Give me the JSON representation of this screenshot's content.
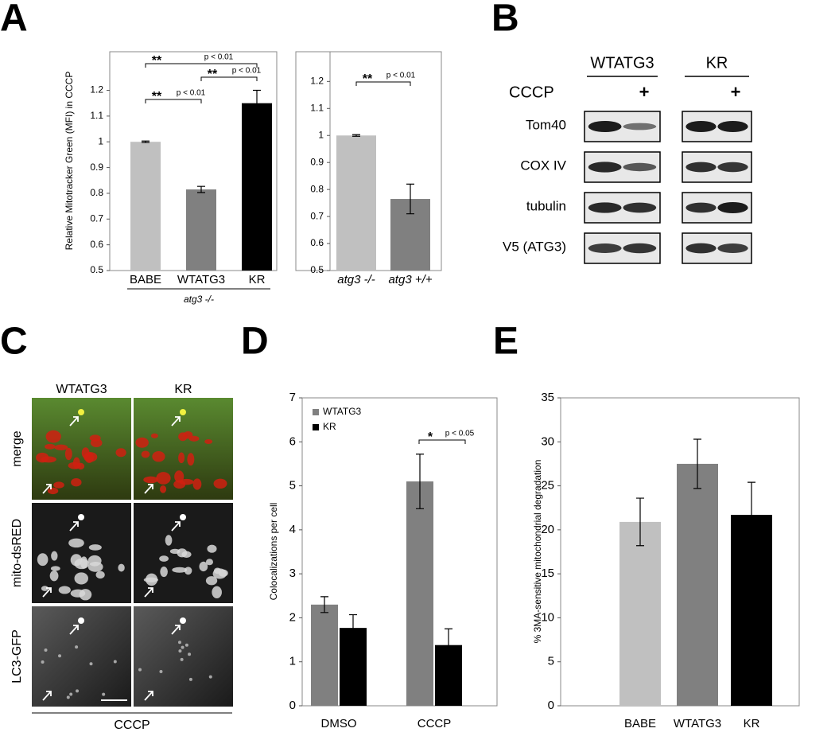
{
  "panel_labels": [
    "A",
    "B",
    "C",
    "D",
    "E"
  ],
  "chart_data": [
    {
      "type": "bar",
      "ylabel": "Relative Mitotracker Green (MFI) in CCCP",
      "categories": [
        "BABE",
        "WTATG3",
        "KR"
      ],
      "values": [
        1.0,
        0.815,
        1.15
      ],
      "errors": [
        0.003,
        0.012,
        0.05
      ],
      "colors": [
        "#c0c0c0",
        "#808080",
        "#000000"
      ],
      "group_label": "atg3 -/-",
      "ylim": [
        0.5,
        1.35
      ],
      "yticks": [
        0.5,
        0.6,
        0.7,
        0.8,
        0.9,
        1,
        1.1,
        1.2
      ],
      "annotations": [
        {
          "stars": "**",
          "text": "p < 0.01"
        },
        {
          "stars": "**",
          "text": "p < 0.01"
        },
        {
          "stars": "**",
          "text": "p < 0.01"
        }
      ]
    },
    {
      "type": "bar",
      "categories": [
        "atg3 -/-",
        "atg3 +/+"
      ],
      "values": [
        1.0,
        0.765
      ],
      "errors": [
        0.003,
        0.055
      ],
      "colors": [
        "#c0c0c0",
        "#808080"
      ],
      "ylim": [
        0.5,
        1.31
      ],
      "yticks": [
        0.5,
        0.6,
        0.7,
        0.8,
        0.9,
        1,
        1.1,
        1.2
      ],
      "annotations": [
        {
          "stars": "**",
          "text": "p < 0.01"
        }
      ]
    },
    {
      "type": "grouped_bar",
      "ylabel": "Colocalizations per cell",
      "categories": [
        "DMSO",
        "CCCP"
      ],
      "series": [
        {
          "name": "WTATG3",
          "color": "#808080",
          "values": [
            2.3,
            5.1
          ],
          "errors": [
            0.18,
            0.62
          ]
        },
        {
          "name": "KR",
          "color": "#000000",
          "values": [
            1.77,
            1.38
          ],
          "errors": [
            0.3,
            0.37
          ]
        }
      ],
      "legend": "upper left",
      "ylim": [
        0,
        7
      ],
      "yticks": [
        0,
        1,
        2,
        3,
        4,
        5,
        6,
        7
      ],
      "annotations": [
        {
          "stars": "*",
          "text": "p < 0.05"
        }
      ]
    },
    {
      "type": "bar",
      "ylabel": "% 3MA-sensitive mitochondrial degradation",
      "categories": [
        "BABE",
        "WTATG3",
        "KR"
      ],
      "values": [
        20.9,
        27.5,
        21.7
      ],
      "errors": [
        2.7,
        2.8,
        3.7
      ],
      "colors": [
        "#c0c0c0",
        "#808080",
        "#000000"
      ],
      "ylim": [
        0,
        35
      ],
      "yticks": [
        0,
        5,
        10,
        15,
        20,
        25,
        30,
        35
      ]
    }
  ],
  "blot": {
    "groups": [
      "WTATG3",
      "KR"
    ],
    "treatment": "CCCP",
    "treated_marks": [
      "+",
      "+"
    ],
    "rows": [
      "Tom40",
      "COX IV",
      "tubulin",
      "V5 (ATG3)"
    ]
  },
  "micrographs": {
    "columns": [
      "WTATG3",
      "KR"
    ],
    "rows": [
      "merge",
      "mito-dsRED",
      "LC3-GFP"
    ],
    "footer": "CCCP"
  }
}
